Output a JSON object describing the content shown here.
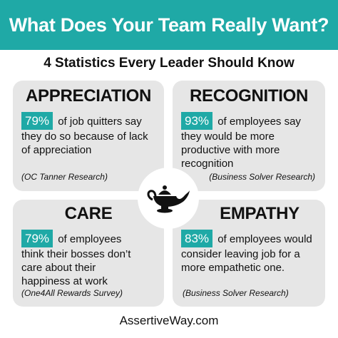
{
  "header": {
    "title": "What Does Your Team Really Want?",
    "subtitle": "4 Statistics Every Leader Should Know"
  },
  "cards": [
    {
      "heading": "APPRECIATION",
      "percent": "79%",
      "text": "of job quitters say they do so because of lack of appreciation",
      "source": "(OC Tanner Research)"
    },
    {
      "heading": "RECOGNITION",
      "percent": "93%",
      "text": "of employees say they would be more productive with more recognition",
      "source": "(Business Solver Research)"
    },
    {
      "heading": "CARE",
      "percent": "79%",
      "text": "of employees think their bosses don’t care about their happiness at work",
      "source": "(One4All Rewards Survey)"
    },
    {
      "heading": "EMPATHY",
      "percent": "83%",
      "text": "of employees would consider leaving job for a more empathetic one.",
      "source": "(Business Solver Research)"
    }
  ],
  "center_icon": "magic-lamp-icon",
  "footer": {
    "site": "AssertiveWay.com"
  },
  "colors": {
    "accent": "#1fa9a6",
    "card": "#e6e6e6",
    "text": "#111111"
  }
}
